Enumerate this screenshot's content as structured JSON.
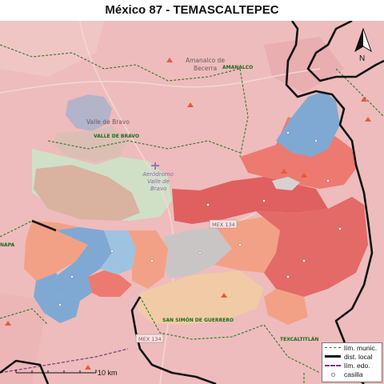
{
  "title": "México 87 - TEMASCALTEPEC",
  "colors": {
    "base_pink": "#eebcbc",
    "water_grey": "#b3b3c9",
    "urban_tan": "#d9b6a8",
    "green_area": "#cfe0c6",
    "red_dark": "#e0605f",
    "red_mid": "#ec7a70",
    "salmon": "#f3a186",
    "blue": "#7fa9d3",
    "blue_light": "#9ec3e0",
    "grey": "#c9c5c5",
    "peach": "#f1cba6",
    "district_line": "#111111",
    "munic_line": "#2a7a2a"
  },
  "places": {
    "amanalco": "Amanalco de Becerra",
    "amanalco_line1": "Amanalco de",
    "amanalco_line2": "Becerra",
    "amanalco_muni": "AMANALCO",
    "valle": "Valle de Bravo",
    "valle_muni": "VALLE DE BRAVO",
    "airport_line1": "Aeródromo",
    "airport_line2": "Valle de",
    "airport_line3": "Bravo",
    "san_simon": "SAN SIMÓN DE GUERRERO",
    "texcaltitlan": "TEXCALTITLÁN",
    "napa": "NAPA"
  },
  "roads": {
    "mex134_a": "MEX 134",
    "mex134_b": "MEX 134"
  },
  "north_label": "N",
  "scale_label": "10 km",
  "legend": {
    "munic": "lím. munic.",
    "local": "dist. local",
    "edo": "lím. edo.",
    "casilla": "casilla"
  }
}
